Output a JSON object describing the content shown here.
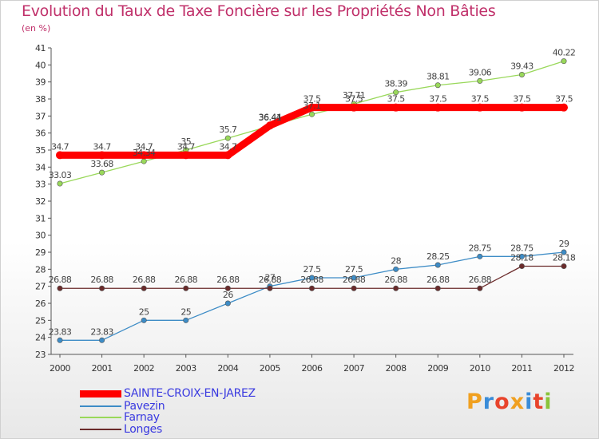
{
  "chart_data": {
    "type": "line",
    "title": "Evolution du Taux de Taxe Foncière sur les Propriétés Non Bâties",
    "ylabel": "(en %)",
    "xlabel": "",
    "x": [
      2000,
      2001,
      2002,
      2003,
      2004,
      2005,
      2006,
      2007,
      2008,
      2009,
      2010,
      2011,
      2012
    ],
    "ylim": [
      23,
      41
    ],
    "yticks": [
      "23",
      "24",
      "25",
      "26",
      "27",
      "28",
      "29",
      "30",
      "31",
      "32",
      "33",
      "34",
      "35",
      "36",
      "37",
      "38",
      "39",
      "40",
      "41"
    ],
    "grid": false,
    "series": [
      {
        "name": "SAINTE-CROIX-EN-JAREZ",
        "color": "#ff0000",
        "values": [
          34.7,
          34.7,
          34.7,
          34.7,
          34.7,
          36.44,
          37.5,
          37.5,
          37.5,
          37.5,
          37.5,
          37.5,
          37.5
        ],
        "labels": [
          "34.7",
          "34.7",
          "34.7",
          "34.7",
          "34.7",
          "36.44",
          "37.5",
          "37.5",
          "37.5",
          "37.5",
          "37.5",
          "37.5",
          "37.5"
        ]
      },
      {
        "name": "Pavezin",
        "color": "#3d8cc6",
        "values": [
          23.83,
          23.83,
          25,
          25,
          26,
          27,
          27.5,
          27.5,
          28,
          28.25,
          28.75,
          28.75,
          29
        ],
        "labels": [
          "23.83",
          "23.83",
          "25",
          "25",
          "26",
          "27",
          "27.5",
          "27.5",
          "28",
          "28.25",
          "28.75",
          "28.75",
          "29"
        ]
      },
      {
        "name": "Farnay",
        "color": "#99d85a",
        "values": [
          33.03,
          33.68,
          34.34,
          35,
          35.7,
          36.41,
          37.1,
          37.71,
          38.39,
          38.81,
          39.06,
          39.43,
          40.22
        ],
        "labels": [
          "33.03",
          "33.68",
          "34.34",
          "35",
          "35.7",
          "36.41",
          "37.1",
          "37.71",
          "38.39",
          "38.81",
          "39.06",
          "39.43",
          "40.22"
        ]
      },
      {
        "name": "Longes",
        "color": "#6b2b2b",
        "values": [
          26.88,
          26.88,
          26.88,
          26.88,
          26.88,
          26.88,
          26.88,
          26.88,
          26.88,
          26.88,
          26.88,
          28.18,
          28.18
        ],
        "labels": [
          "26.88",
          "26.88",
          "26.88",
          "26.88",
          "26.88",
          "26.88",
          "26.88",
          "26.88",
          "26.88",
          "26.88",
          "26.88",
          "28.18",
          "28.18"
        ]
      }
    ],
    "legend": "bottom-left"
  },
  "brand": {
    "letters": [
      "P",
      "r",
      "o",
      "x",
      "i",
      "t",
      "i"
    ],
    "colors": [
      "#f0a020",
      "#3a8cd8",
      "#e8442c",
      "#f0a020",
      "#3a8cd8",
      "#e8442c",
      "#8ac43a"
    ]
  }
}
